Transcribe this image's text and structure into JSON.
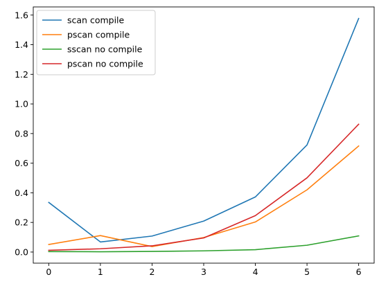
{
  "chart_data": {
    "type": "line",
    "title": "",
    "xlabel": "",
    "ylabel": "",
    "x": [
      0,
      1,
      2,
      3,
      4,
      5,
      6
    ],
    "xlim": [
      -0.3,
      6.3
    ],
    "ylim": [
      -0.075,
      1.655
    ],
    "xticks": [
      0,
      1,
      2,
      3,
      4,
      5,
      6
    ],
    "yticks": [
      0.0,
      0.2,
      0.4,
      0.6,
      0.8,
      1.0,
      1.2,
      1.4,
      1.6
    ],
    "grid": false,
    "legend": "top-left",
    "series": [
      {
        "name": "scan compile",
        "color": "#1f77b4",
        "values": [
          0.335,
          0.068,
          0.108,
          0.209,
          0.372,
          0.723,
          1.577
        ]
      },
      {
        "name": "pscan compile",
        "color": "#ff7f0e",
        "values": [
          0.051,
          0.111,
          0.037,
          0.098,
          0.203,
          0.42,
          0.716
        ]
      },
      {
        "name": "sscan no compile",
        "color": "#2ca02c",
        "values": [
          0.003,
          0.002,
          0.004,
          0.008,
          0.016,
          0.046,
          0.109
        ]
      },
      {
        "name": "pscan no compile",
        "color": "#d62728",
        "values": [
          0.012,
          0.022,
          0.042,
          0.095,
          0.246,
          0.501,
          0.863
        ]
      }
    ]
  }
}
